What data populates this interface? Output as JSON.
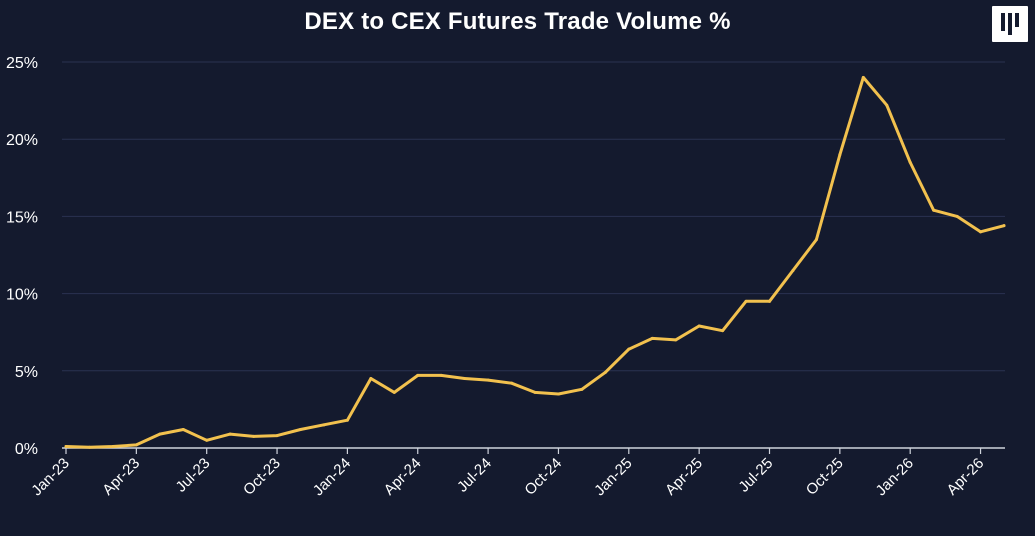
{
  "brand": {
    "logo_icon": "brand-logo-icon"
  },
  "chart_data": {
    "type": "line",
    "title": "DEX to CEX Futures Trade Volume %",
    "xlabel": "",
    "ylabel": "",
    "y_tick_labels": [
      "0%",
      "5%",
      "10%",
      "15%",
      "20%",
      "25%"
    ],
    "y_ticks": [
      0,
      5,
      10,
      15,
      20,
      25
    ],
    "ylim": [
      0,
      25
    ],
    "x_tick_labels": [
      "Jan-23",
      "Apr-23",
      "Jul-23",
      "Oct-23",
      "Jan-24",
      "Apr-24",
      "Jul-24",
      "Oct-24",
      "Jan-25",
      "Apr-25",
      "Jul-25",
      "Oct-25",
      "Jan-26",
      "Apr-26"
    ],
    "grid": "horizontal",
    "colors": {
      "background": "#141a2e",
      "line": "#f2c14e",
      "grid": "#2a3250",
      "text": "#ffffff"
    },
    "x": [
      "Jan-23",
      "Feb-23",
      "Mar-23",
      "Apr-23",
      "May-23",
      "Jun-23",
      "Jul-23",
      "Aug-23",
      "Sep-23",
      "Oct-23",
      "Nov-23",
      "Dec-23",
      "Jan-24",
      "Feb-24",
      "Mar-24",
      "Apr-24",
      "May-24",
      "Jun-24",
      "Jul-24",
      "Aug-24",
      "Sep-24",
      "Oct-24",
      "Nov-24",
      "Dec-24",
      "Jan-25",
      "Feb-25",
      "Mar-25",
      "Apr-25",
      "May-25",
      "Jun-25",
      "Jul-25",
      "Aug-25",
      "Sep-25",
      "Oct-25",
      "Nov-25",
      "Dec-25",
      "Jan-26",
      "Feb-26",
      "Mar-26",
      "Apr-26",
      "May-26"
    ],
    "series": [
      {
        "values": [
          0.1,
          0.05,
          0.1,
          0.2,
          0.9,
          1.2,
          0.5,
          0.9,
          0.75,
          0.8,
          1.2,
          1.5,
          1.8,
          4.5,
          3.6,
          4.7,
          4.7,
          4.5,
          4.4,
          4.2,
          3.6,
          3.5,
          3.8,
          4.9,
          6.4,
          7.1,
          7.0,
          7.9,
          7.6,
          9.5,
          9.5,
          11.5,
          13.5,
          19.0,
          24.0,
          22.2,
          18.5,
          15.4,
          15.0,
          14.0,
          14.4
        ]
      }
    ]
  }
}
